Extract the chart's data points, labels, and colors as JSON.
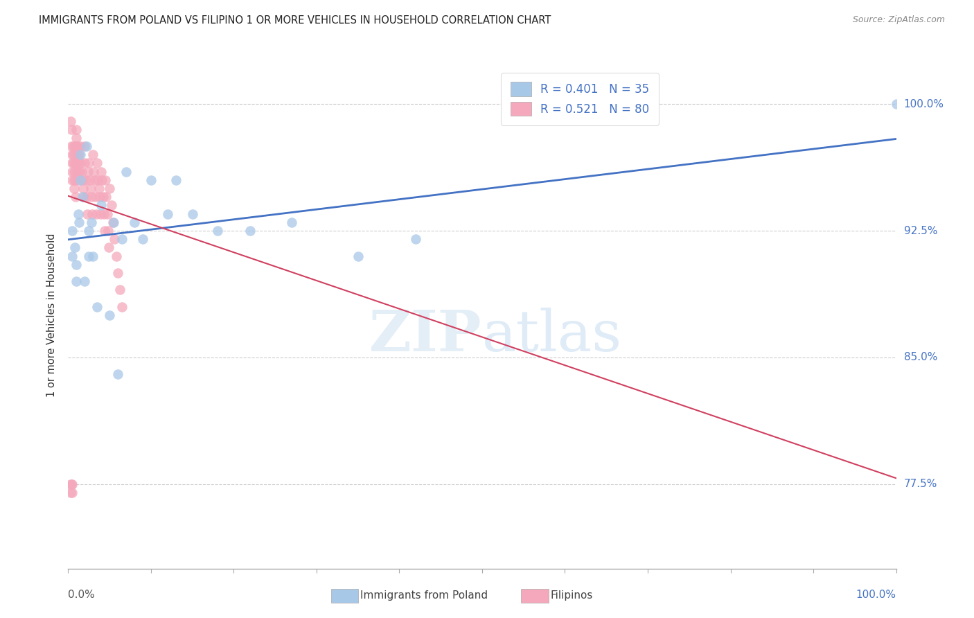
{
  "title": "IMMIGRANTS FROM POLAND VS FILIPINO 1 OR MORE VEHICLES IN HOUSEHOLD CORRELATION CHART",
  "source": "Source: ZipAtlas.com",
  "ylabel": "1 or more Vehicles in Household",
  "ytick_labels": [
    "100.0%",
    "92.5%",
    "85.0%",
    "77.5%"
  ],
  "ytick_values": [
    1.0,
    0.925,
    0.85,
    0.775
  ],
  "xlim": [
    0.0,
    1.0
  ],
  "ylim": [
    0.725,
    1.025
  ],
  "legend_r_poland": "R = 0.401",
  "legend_n_poland": "N = 35",
  "legend_r_filipino": "R = 0.521",
  "legend_n_filipino": "N = 80",
  "poland_color": "#a8c8e8",
  "filipino_color": "#f5a8bc",
  "trendline_poland_color": "#4472c4",
  "trendline_filipino_color": "#d04060",
  "poland_x": [
    0.005,
    0.005,
    0.008,
    0.01,
    0.01,
    0.012,
    0.013,
    0.015,
    0.015,
    0.017,
    0.02,
    0.022,
    0.025,
    0.025,
    0.028,
    0.03,
    0.035,
    0.04,
    0.05,
    0.055,
    0.065,
    0.07,
    0.08,
    0.09,
    0.1,
    0.12,
    0.13,
    0.15,
    0.18,
    0.22,
    0.27,
    0.35,
    0.42,
    0.06,
    1.0
  ],
  "poland_y": [
    0.91,
    0.925,
    0.915,
    0.905,
    0.895,
    0.935,
    0.93,
    0.97,
    0.955,
    0.945,
    0.895,
    0.975,
    0.925,
    0.91,
    0.93,
    0.91,
    0.88,
    0.94,
    0.875,
    0.93,
    0.92,
    0.96,
    0.93,
    0.92,
    0.955,
    0.935,
    0.955,
    0.935,
    0.925,
    0.925,
    0.93,
    0.91,
    0.92,
    0.84,
    1.0
  ],
  "filipino_x": [
    0.003,
    0.004,
    0.004,
    0.005,
    0.005,
    0.005,
    0.005,
    0.006,
    0.006,
    0.006,
    0.007,
    0.007,
    0.007,
    0.008,
    0.008,
    0.008,
    0.009,
    0.009,
    0.009,
    0.01,
    0.01,
    0.01,
    0.01,
    0.011,
    0.011,
    0.012,
    0.012,
    0.013,
    0.013,
    0.014,
    0.015,
    0.015,
    0.016,
    0.017,
    0.018,
    0.019,
    0.02,
    0.02,
    0.021,
    0.022,
    0.023,
    0.024,
    0.025,
    0.026,
    0.027,
    0.028,
    0.029,
    0.03,
    0.031,
    0.032,
    0.033,
    0.034,
    0.035,
    0.036,
    0.037,
    0.038,
    0.039,
    0.04,
    0.041,
    0.042,
    0.043,
    0.044,
    0.045,
    0.046,
    0.047,
    0.048,
    0.049,
    0.05,
    0.052,
    0.054,
    0.056,
    0.058,
    0.06,
    0.062,
    0.065,
    0.003,
    0.003,
    0.004,
    0.005,
    0.005
  ],
  "filipino_y": [
    0.99,
    0.975,
    0.985,
    0.97,
    0.965,
    0.96,
    0.955,
    0.975,
    0.97,
    0.965,
    0.96,
    0.955,
    0.95,
    0.975,
    0.97,
    0.965,
    0.96,
    0.955,
    0.945,
    0.985,
    0.98,
    0.975,
    0.965,
    0.975,
    0.97,
    0.96,
    0.955,
    0.97,
    0.965,
    0.96,
    0.975,
    0.965,
    0.96,
    0.955,
    0.95,
    0.945,
    0.975,
    0.965,
    0.955,
    0.945,
    0.935,
    0.96,
    0.965,
    0.955,
    0.95,
    0.945,
    0.935,
    0.97,
    0.96,
    0.955,
    0.945,
    0.935,
    0.965,
    0.955,
    0.95,
    0.945,
    0.935,
    0.96,
    0.955,
    0.945,
    0.935,
    0.925,
    0.955,
    0.945,
    0.935,
    0.925,
    0.915,
    0.95,
    0.94,
    0.93,
    0.92,
    0.91,
    0.9,
    0.89,
    0.88,
    0.775,
    0.77,
    0.775,
    0.775,
    0.77
  ]
}
